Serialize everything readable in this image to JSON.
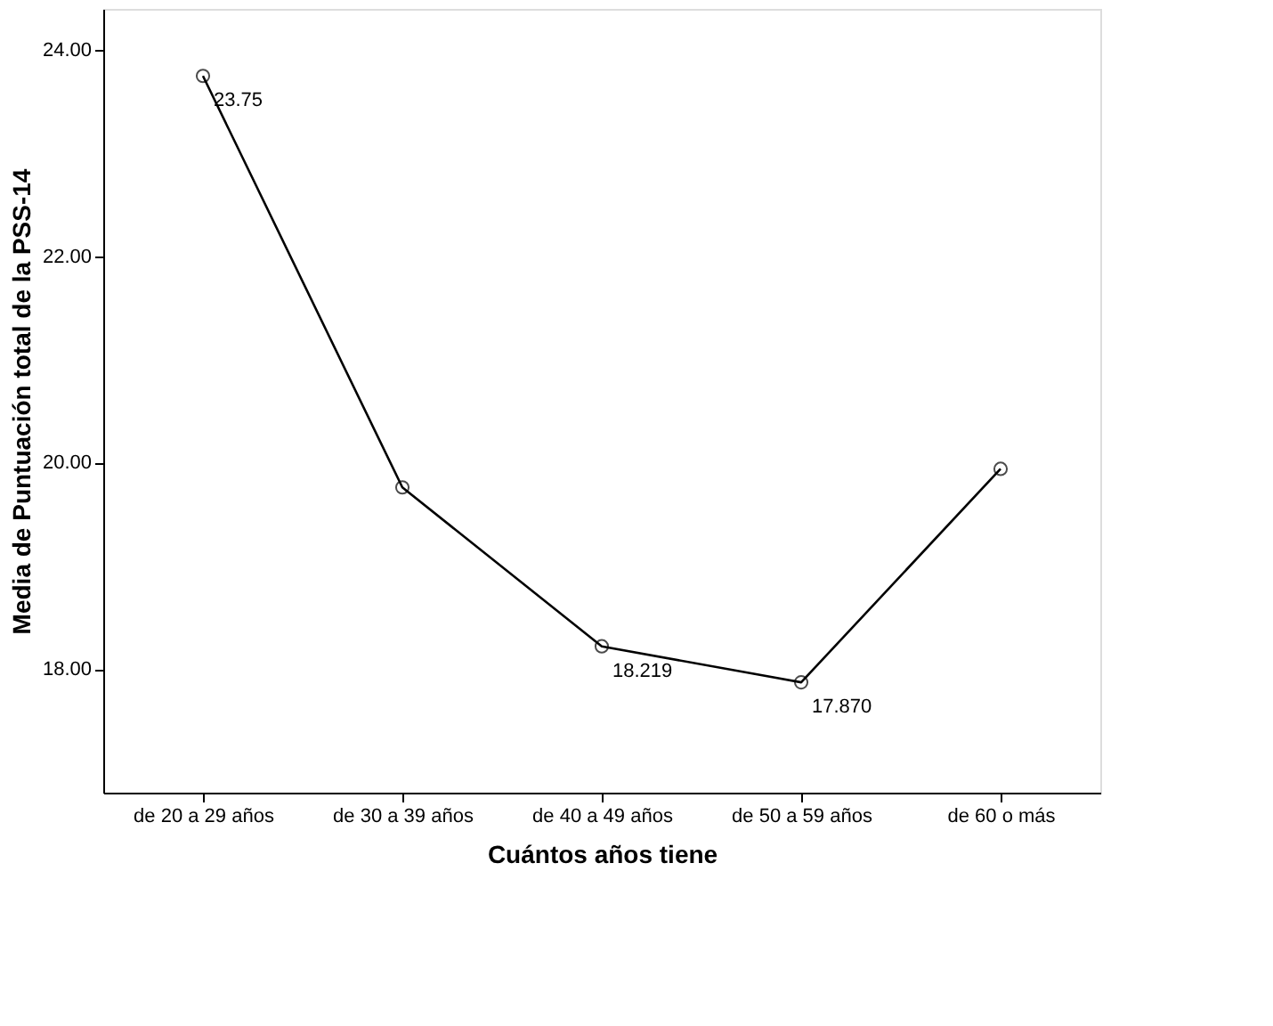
{
  "chart_data": {
    "type": "line",
    "xlabel": "Cuántos años tiene",
    "ylabel": "Media de Puntuación total de la PSS-14",
    "categories": [
      "de 20 a 29 años",
      "de 30 a 39 años",
      "de 40 a 49 años",
      "de 50 a 59 años",
      "de 60 o más"
    ],
    "series": [
      {
        "color": "#000000",
        "values": [
          23.75,
          19.76,
          18.219,
          17.87,
          19.94
        ]
      }
    ],
    "value_labels": [
      "23.75",
      null,
      "18.219",
      "17.870",
      null
    ],
    "ylim": [
      16.8,
      24.4
    ],
    "yticks": [
      {
        "value": 18,
        "label": "18.00"
      },
      {
        "value": 20,
        "label": "20.00"
      },
      {
        "value": 22,
        "label": "22.00"
      },
      {
        "value": 24,
        "label": "24.00"
      }
    ],
    "grid": false,
    "marker": "circle",
    "line_style": "solid"
  }
}
